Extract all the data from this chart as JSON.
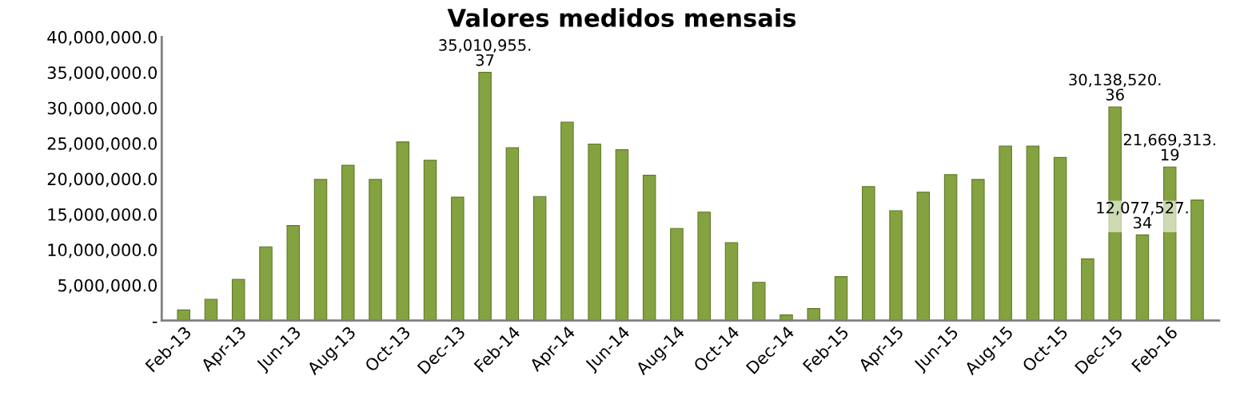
{
  "chart_data": {
    "type": "bar",
    "title": "Valores medidos mensais",
    "categories": [
      "Feb-13",
      null,
      "Apr-13",
      null,
      "Jun-13",
      null,
      "Aug-13",
      null,
      "Oct-13",
      null,
      "Dec-13",
      null,
      "Feb-14",
      null,
      "Apr-14",
      null,
      "Jun-14",
      null,
      "Aug-14",
      null,
      "Oct-14",
      null,
      "Dec-14",
      null,
      "Feb-15",
      null,
      "Apr-15",
      null,
      "Jun-15",
      null,
      "Aug-15",
      null,
      "Oct-15",
      null,
      "Dec-15",
      null,
      "Feb-16",
      null
    ],
    "values": [
      1500000,
      3000000,
      5800000,
      10400000,
      13400000,
      19900000,
      21900000,
      19900000,
      25200000,
      22600000,
      17400000,
      35010955.37,
      24400000,
      17500000,
      28000000,
      24900000,
      24100000,
      20500000,
      13000000,
      15300000,
      11000000,
      5400000,
      800000,
      1700000,
      6200000,
      18900000,
      15500000,
      18100000,
      20600000,
      19900000,
      24600000,
      24600000,
      23000000,
      8700000,
      30138520.36,
      12077527.34,
      21669313.19,
      17000000
    ],
    "value_labels": [
      null,
      null,
      null,
      null,
      null,
      null,
      null,
      null,
      null,
      null,
      null,
      "35,010,955.37",
      null,
      null,
      null,
      null,
      null,
      null,
      null,
      null,
      null,
      null,
      null,
      null,
      null,
      null,
      null,
      null,
      null,
      null,
      null,
      null,
      null,
      null,
      "30,138,520.36",
      "12,077,527.34",
      "21,669,313.19",
      null
    ],
    "color": "#84a240",
    "ylim": [
      0,
      40000000
    ],
    "yticks": [
      {
        "value": 0,
        "label": "-"
      },
      {
        "value": 5000000,
        "label": "5,000,000.0"
      },
      {
        "value": 10000000,
        "label": "10,000,000.0"
      },
      {
        "value": 15000000,
        "label": "15,000,000.0"
      },
      {
        "value": 20000000,
        "label": "20,000,000.0"
      },
      {
        "value": 25000000,
        "label": "25,000,000.0"
      },
      {
        "value": 30000000,
        "label": "30,000,000.0"
      },
      {
        "value": 35000000,
        "label": "35,000,000.0"
      },
      {
        "value": 40000000,
        "label": "40,000,000.0"
      }
    ],
    "grid": false,
    "legend": false
  }
}
